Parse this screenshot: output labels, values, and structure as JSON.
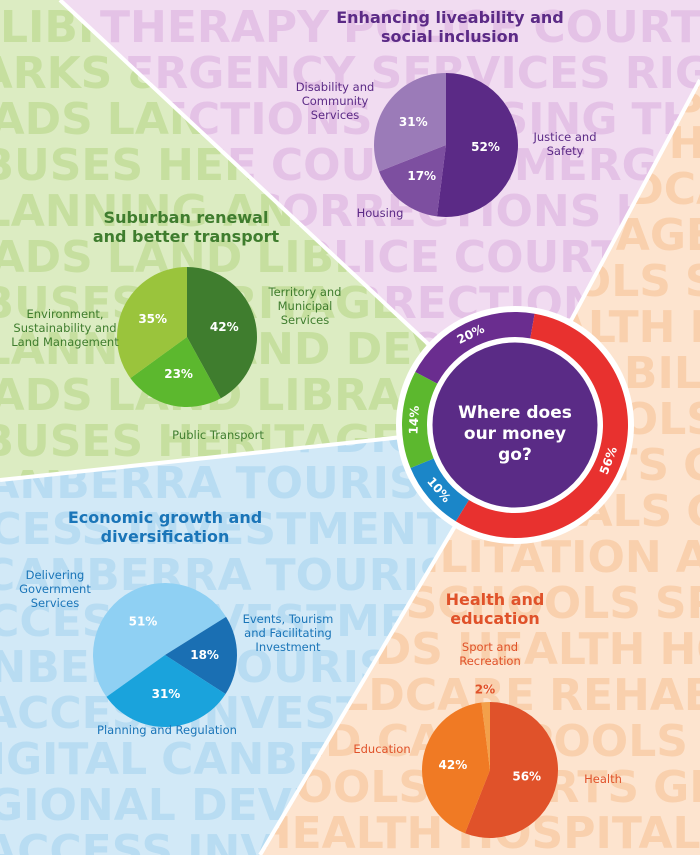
{
  "chart_data": [
    {
      "type": "donut",
      "title": "Where does our money go?",
      "values": [
        20,
        56,
        10,
        14
      ],
      "value_labels": [
        "20%",
        "56%",
        "10%",
        "14%"
      ],
      "colors": [
        "#6a2d8f",
        "#e8312f",
        "#1b86c8",
        "#5cb82e"
      ]
    },
    {
      "type": "pie",
      "title": "Enhancing liveability and social inclusion",
      "categories": [
        "Justice and Safety",
        "Housing",
        "Disability and Community Services"
      ],
      "values": [
        52,
        17,
        31
      ],
      "value_labels": [
        "52%",
        "17%",
        "31%"
      ],
      "colors": [
        "#5b2a86",
        "#7d4fa0",
        "#9b7bb8"
      ],
      "text_color": "#5b2a86"
    },
    {
      "type": "pie",
      "title": "Suburban renewal and better transport",
      "categories": [
        "Territory and Municipal Services",
        "Public Transport",
        "Environment, Sustainability and Land Management"
      ],
      "values": [
        42,
        23,
        35
      ],
      "value_labels": [
        "42%",
        "23%",
        "35%"
      ],
      "colors": [
        "#3f7d2e",
        "#5cb82e",
        "#9ac43c"
      ],
      "text_color": "#3f7d2e"
    },
    {
      "type": "pie",
      "title": "Economic growth and diversification",
      "categories": [
        "Delivering Government Services",
        "Events, Tourism and Facilitating Investment",
        "Planning and Regulation"
      ],
      "values": [
        51,
        18,
        31
      ],
      "value_labels": [
        "51%",
        "18%",
        "31%"
      ],
      "colors": [
        "#8fd0f3",
        "#1a6fb3",
        "#1aa3dc"
      ],
      "text_color": "#1a75b8"
    },
    {
      "type": "pie",
      "title": "Health and education",
      "categories": [
        "Health",
        "Education",
        "Sport and Recreation"
      ],
      "values": [
        56,
        42,
        2
      ],
      "value_labels": [
        "56%",
        "42%",
        "2%"
      ],
      "colors": [
        "#e0522a",
        "#f07a24",
        "#f3a04a"
      ],
      "text_color": "#e0522a"
    }
  ],
  "background_words": [
    [
      "THERAPY",
      "POLICE",
      "COURTS",
      "EMERGENCY SERVICES",
      "RIGHTS",
      "CORRECTIONS",
      "HOUSING"
    ],
    [
      "LIBRARIES",
      "BUSES",
      "HERITAGE",
      "PARKS & PUBLIC",
      "PLANNING AND DEVELOPMENT",
      "ROADS",
      "LAND"
    ],
    [
      "INVESTMENT",
      "DIGITAL",
      "CANBERRA",
      "TOURISM",
      "REGIONAL DEVELOPMENT",
      "ACCESS"
    ],
    [
      "SCHOOLS",
      "SPORTS",
      "GROUNDS",
      "HEALTH",
      "HOSPITALS",
      "CHILDCARE",
      "REHABILITATION",
      "AGED CARE",
      "POOLS"
    ]
  ]
}
